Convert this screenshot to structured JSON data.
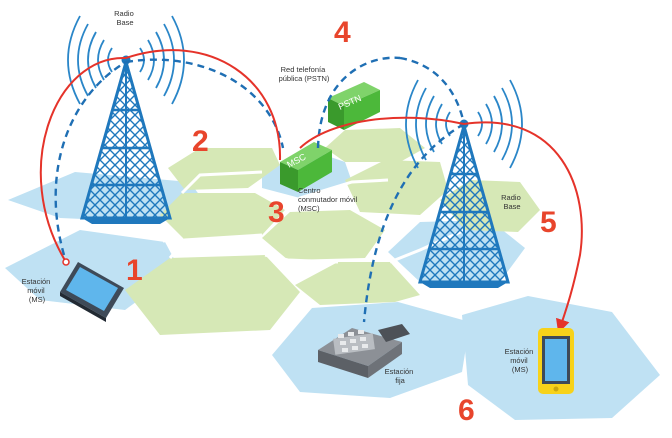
{
  "labels": {
    "radio_base_left": [
      "Radio",
      "Base"
    ],
    "radio_base_right": [
      "Radio",
      "Base"
    ],
    "pstn_network": [
      "Red telefonía",
      "pública (PSTN)"
    ],
    "pstn_box": "PSTN",
    "msc_box": "MSC",
    "msc_caption": [
      "Centro",
      "conmutador móvil",
      "(MSC)"
    ],
    "mobile_station_left": [
      "Estación",
      "móvil",
      "(MS)"
    ],
    "mobile_station_right": [
      "Estación",
      "móvil",
      "(MS)"
    ],
    "fixed_station": [
      "Estación",
      "fija"
    ]
  },
  "step_numbers": [
    "1",
    "2",
    "3",
    "4",
    "5",
    "6"
  ],
  "colors": {
    "cell_blue": "#bfe1f3",
    "cell_green": "#d6e8b6",
    "tower_blue": "#1f78bd",
    "signal_blue": "#2a86c8",
    "link_red": "#e5332a",
    "number_red": "#e8452c",
    "box_green": "#4cb83a",
    "phone_yellow": "#f7d21a"
  }
}
